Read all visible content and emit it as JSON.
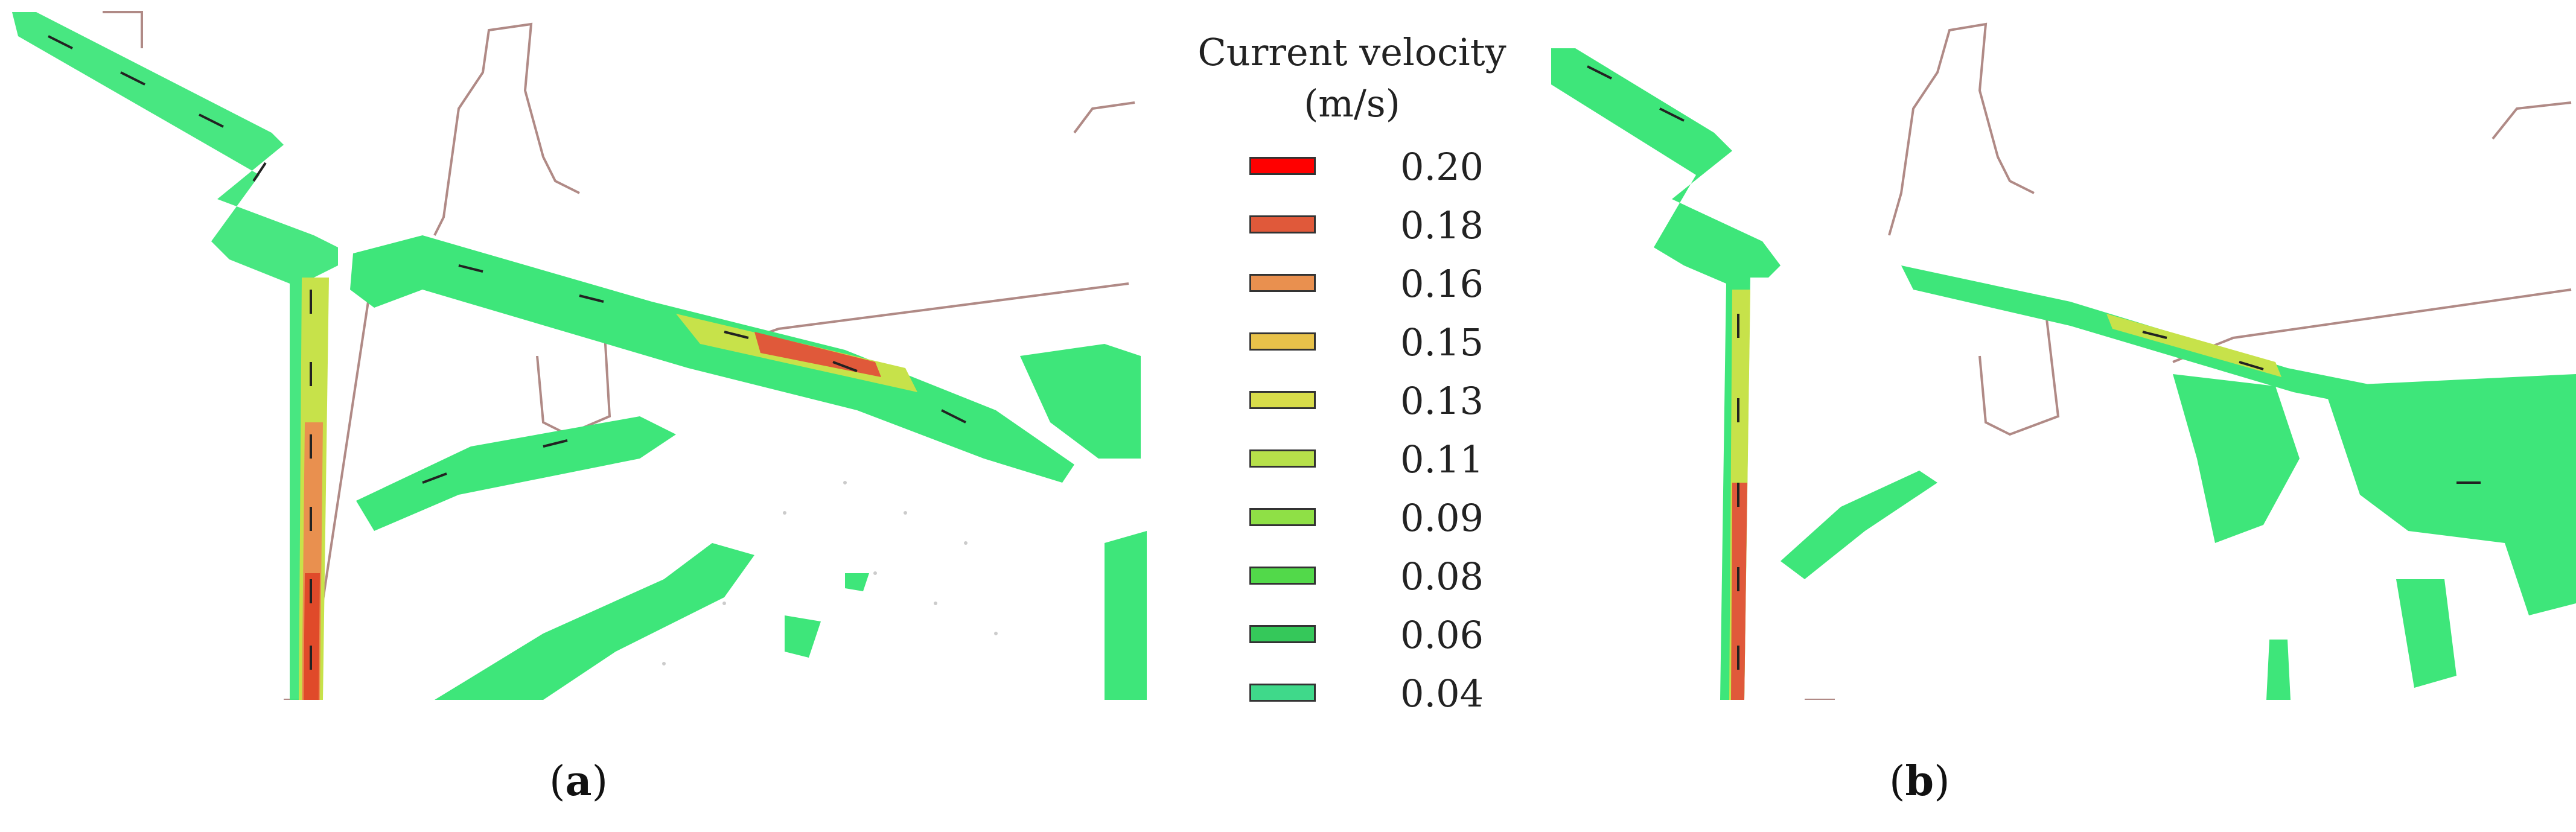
{
  "legend": {
    "title_line1": "Current velocity",
    "title_line2": "(m/s)",
    "items": [
      {
        "label": "0.20",
        "color": "#ff0000"
      },
      {
        "label": "0.18",
        "color": "#e0593a"
      },
      {
        "label": "0.16",
        "color": "#e9904f"
      },
      {
        "label": "0.15",
        "color": "#e8c24a"
      },
      {
        "label": "0.13",
        "color": "#d8dc4a"
      },
      {
        "label": "0.11",
        "color": "#b7e04a"
      },
      {
        "label": "0.09",
        "color": "#8fe046"
      },
      {
        "label": "0.08",
        "color": "#52d94a"
      },
      {
        "label": "0.06",
        "color": "#35c85a"
      },
      {
        "label": "0.04",
        "color": "#3fd98a"
      }
    ]
  },
  "panels": [
    {
      "id": "a",
      "caption_letter": "a"
    },
    {
      "id": "b",
      "caption_letter": "b"
    }
  ],
  "colors": {
    "coastline": "#b08a86",
    "flow_fill": "#3ee67a",
    "flow_core": "#c7e24a",
    "flow_hot": "#e04a2a",
    "arrow": "#222222"
  }
}
